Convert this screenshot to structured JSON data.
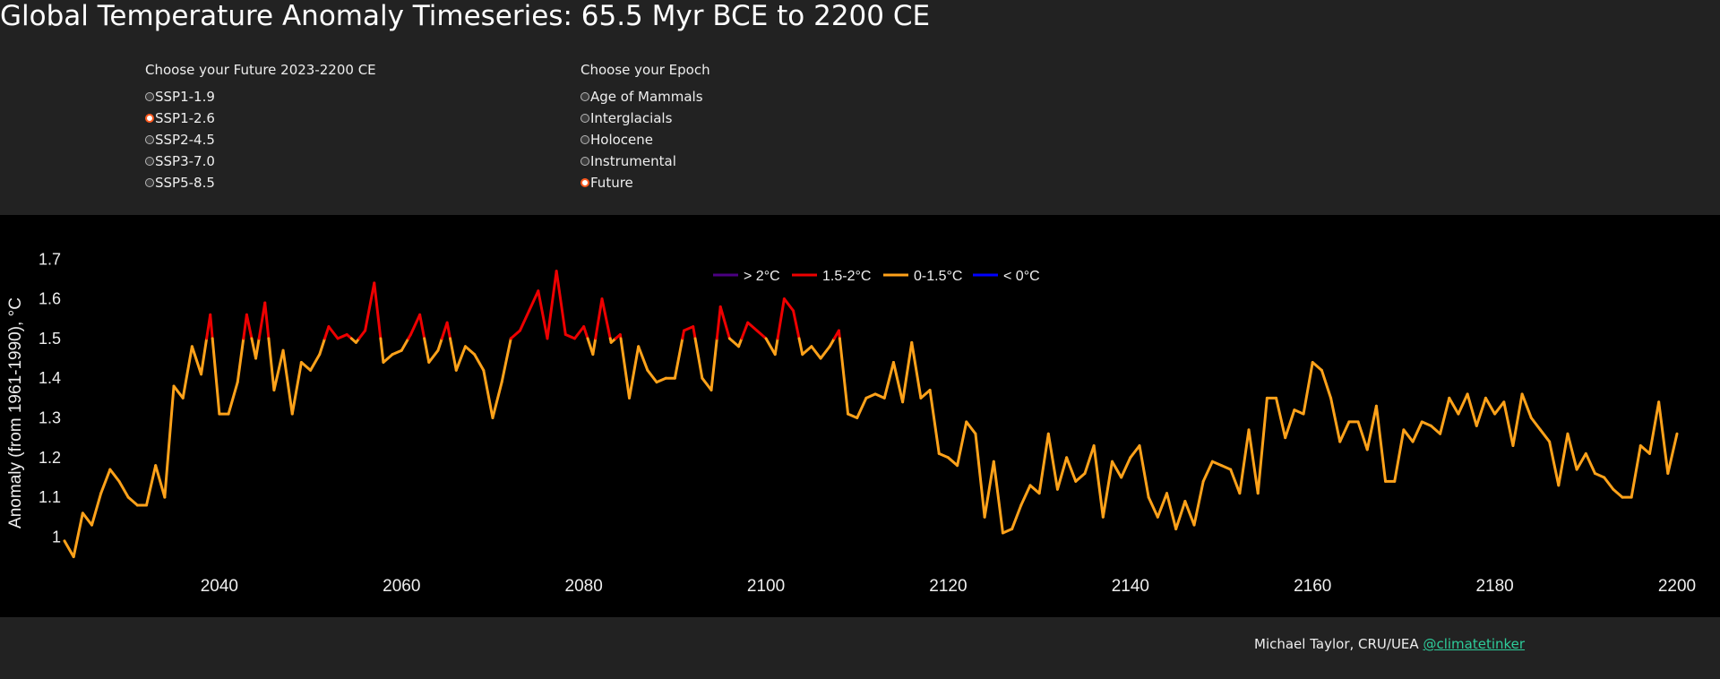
{
  "page": {
    "title": "Global Temperature Anomaly Timeseries: 65.5 Myr BCE to 2200 CE"
  },
  "controls": {
    "future": {
      "label": "Choose your Future 2023-2200 CE",
      "options": [
        "SSP1-1.9",
        "SSP1-2.6",
        "SSP2-4.5",
        "SSP3-7.0",
        "SSP5-8.5"
      ],
      "selected": "SSP1-2.6"
    },
    "epoch": {
      "label": "Choose your Epoch",
      "options": [
        "Age of Mammals",
        "Interglacials",
        "Holocene",
        "Instrumental",
        "Future"
      ],
      "selected": "Future"
    }
  },
  "footer": {
    "credit": "Michael Taylor, CRU/UEA",
    "link": "@climatetinker"
  },
  "chart_data": {
    "type": "line",
    "title": "",
    "xlabel": "",
    "ylabel": "Anomaly (from 1961-1990), °C",
    "xlim": [
      2023,
      2200
    ],
    "ylim": [
      0.94,
      1.73
    ],
    "xticks": [
      2040,
      2060,
      2080,
      2100,
      2120,
      2140,
      2160,
      2180,
      2200
    ],
    "yticks": [
      1,
      1.1,
      1.2,
      1.3,
      1.4,
      1.5,
      1.6,
      1.7
    ],
    "grid": false,
    "legend_position": "top-center",
    "legend": [
      {
        "label": "> 2°C",
        "color": "#4b0082",
        "min": 2,
        "max": 99
      },
      {
        "label": "1.5-2°C",
        "color": "#ee0000",
        "min": 1.5,
        "max": 2
      },
      {
        "label": "0-1.5°C",
        "color": "#ffa21a",
        "min": 0,
        "max": 1.5
      },
      {
        "label": "< 0°C",
        "color": "#0000ff",
        "min": -99,
        "max": 0
      }
    ],
    "x_start": 2023,
    "x_step": 1,
    "values": [
      0.99,
      0.95,
      1.06,
      1.03,
      1.11,
      1.17,
      1.14,
      1.1,
      1.08,
      1.08,
      1.18,
      1.1,
      1.38,
      1.35,
      1.48,
      1.41,
      1.56,
      1.31,
      1.31,
      1.39,
      1.56,
      1.45,
      1.59,
      1.37,
      1.47,
      1.31,
      1.44,
      1.42,
      1.46,
      1.53,
      1.5,
      1.51,
      1.49,
      1.52,
      1.64,
      1.44,
      1.46,
      1.47,
      1.51,
      1.56,
      1.44,
      1.47,
      1.54,
      1.42,
      1.48,
      1.46,
      1.42,
      1.3,
      1.39,
      1.5,
      1.52,
      1.57,
      1.62,
      1.5,
      1.67,
      1.51,
      1.5,
      1.53,
      1.46,
      1.6,
      1.49,
      1.51,
      1.35,
      1.48,
      1.42,
      1.39,
      1.4,
      1.4,
      1.52,
      1.53,
      1.4,
      1.37,
      1.58,
      1.5,
      1.48,
      1.54,
      1.52,
      1.5,
      1.46,
      1.6,
      1.57,
      1.46,
      1.48,
      1.45,
      1.48,
      1.52,
      1.31,
      1.3,
      1.35,
      1.36,
      1.35,
      1.44,
      1.34,
      1.49,
      1.35,
      1.37,
      1.21,
      1.2,
      1.18,
      1.29,
      1.26,
      1.05,
      1.19,
      1.01,
      1.02,
      1.08,
      1.13,
      1.11,
      1.26,
      1.12,
      1.2,
      1.14,
      1.16,
      1.23,
      1.05,
      1.19,
      1.15,
      1.2,
      1.23,
      1.1,
      1.05,
      1.11,
      1.02,
      1.09,
      1.03,
      1.14,
      1.19,
      1.18,
      1.17,
      1.11,
      1.27,
      1.11,
      1.35,
      1.35,
      1.25,
      1.32,
      1.31,
      1.44,
      1.42,
      1.35,
      1.24,
      1.29,
      1.29,
      1.22,
      1.33,
      1.14,
      1.14,
      1.27,
      1.24,
      1.29,
      1.28,
      1.26,
      1.35,
      1.31,
      1.36,
      1.28,
      1.35,
      1.31,
      1.34,
      1.23,
      1.36,
      1.3,
      1.27,
      1.24,
      1.13,
      1.26,
      1.17,
      1.21,
      1.16,
      1.15,
      1.12,
      1.1,
      1.1,
      1.23,
      1.21,
      1.34,
      1.16,
      1.26
    ]
  }
}
